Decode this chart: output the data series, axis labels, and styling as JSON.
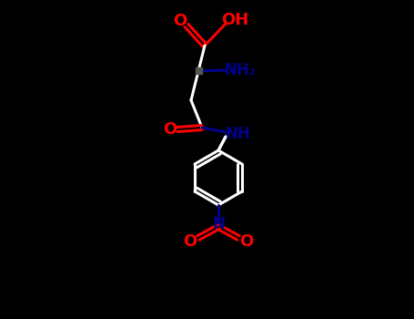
{
  "bg_color": "#000000",
  "line_color": "#ffffff",
  "red_color": "#ff0000",
  "blue_color": "#00008b",
  "dark_gray": "#555555",
  "figsize": [
    4.55,
    3.5
  ],
  "dpi": 100,
  "xlim": [
    0,
    455
  ],
  "ylim": [
    0,
    350
  ]
}
